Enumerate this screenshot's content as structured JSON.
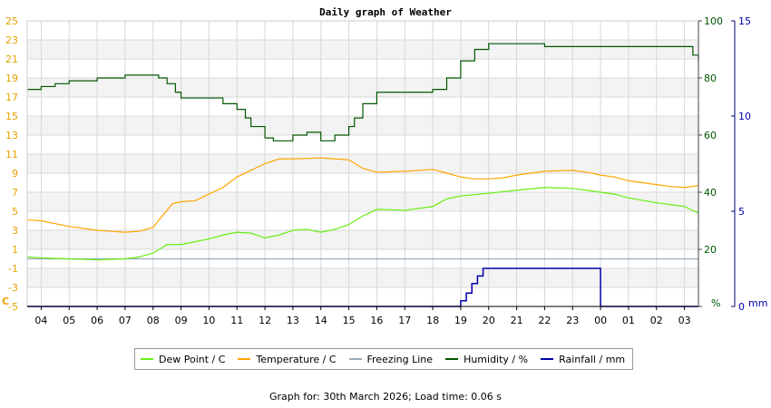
{
  "chart_data": {
    "type": "line",
    "title": "Daily graph of Weather",
    "x_ticks": [
      "04",
      "05",
      "06",
      "07",
      "08",
      "09",
      "10",
      "11",
      "12",
      "13",
      "14",
      "15",
      "16",
      "17",
      "18",
      "19",
      "20",
      "21",
      "22",
      "23",
      "00",
      "01",
      "02",
      "03"
    ],
    "left_axis": {
      "unit": "C",
      "ticks": [
        25,
        23,
        21,
        19,
        17,
        15,
        13,
        11,
        9,
        7,
        5,
        3,
        1,
        -1,
        -3,
        -5
      ],
      "range": [
        -5,
        25
      ]
    },
    "right_axis_humidity": {
      "unit": "%",
      "ticks": [
        100,
        80,
        60,
        40,
        20,
        0
      ],
      "range": [
        0,
        100
      ]
    },
    "right_axis_rain": {
      "unit": "mm",
      "ticks": [
        15,
        10,
        5,
        0
      ],
      "range": [
        0,
        15
      ]
    },
    "grid": true,
    "legend_position": "bottom",
    "series": [
      {
        "name": "Dew Point / C",
        "color": "#66ee11",
        "axis": "temp",
        "x": [
          3.5,
          4,
          5,
          6,
          7,
          7.5,
          8,
          8.5,
          9,
          9.5,
          10,
          10.5,
          11,
          11.5,
          12,
          12.5,
          13,
          13.5,
          14,
          14.5,
          15,
          15.5,
          16,
          17,
          18,
          18.5,
          19,
          20,
          21,
          22,
          23,
          23.5,
          24,
          24.5,
          25,
          26,
          27,
          27.5
        ],
        "y": [
          0.2,
          0.1,
          0,
          -0.1,
          0,
          0.2,
          0.6,
          1.5,
          1.5,
          1.8,
          2.1,
          2.5,
          2.8,
          2.7,
          2.2,
          2.5,
          3.0,
          3.1,
          2.8,
          3.1,
          3.6,
          4.5,
          5.2,
          5.1,
          5.5,
          6.3,
          6.6,
          6.9,
          7.2,
          7.5,
          7.4,
          7.2,
          7.0,
          6.8,
          6.4,
          5.9,
          5.5,
          4.8
        ]
      },
      {
        "name": "Temperature / C",
        "color": "#ffa500",
        "axis": "temp",
        "x": [
          3.5,
          4,
          5,
          6,
          7,
          7.5,
          8,
          8.3,
          8.7,
          9,
          9.5,
          10,
          10.5,
          11,
          11.5,
          12,
          12.5,
          13,
          14,
          14.5,
          15,
          15.5,
          16,
          17,
          18,
          18.5,
          19,
          19.5,
          20,
          20.5,
          21,
          22,
          23,
          23.5,
          24,
          24.5,
          25,
          26,
          26.5,
          27,
          27.5
        ],
        "y": [
          4.1,
          4.0,
          3.4,
          3.0,
          2.8,
          2.9,
          3.3,
          4.4,
          5.8,
          6.0,
          6.1,
          6.8,
          7.5,
          8.6,
          9.3,
          10.0,
          10.5,
          10.5,
          10.6,
          10.5,
          10.4,
          9.5,
          9.1,
          9.2,
          9.4,
          9.0,
          8.6,
          8.4,
          8.4,
          8.5,
          8.8,
          9.2,
          9.3,
          9.1,
          8.8,
          8.6,
          8.2,
          7.8,
          7.6,
          7.5,
          7.7
        ]
      },
      {
        "name": "Freezing Line",
        "color": "#99aabb",
        "axis": "temp",
        "x": [
          3.5,
          27.5
        ],
        "y": [
          0,
          0
        ]
      },
      {
        "name": "Humidity / %",
        "color": "#005500",
        "axis": "humidity",
        "x": [
          3.5,
          4,
          4.5,
          5,
          5.5,
          6,
          6.5,
          7,
          7.5,
          8,
          8.2,
          8.5,
          8.8,
          9,
          9.5,
          10,
          10.5,
          11,
          11.3,
          11.5,
          12,
          12.3,
          12.5,
          13,
          13.5,
          14,
          14.5,
          15,
          15.2,
          15.5,
          16,
          16.5,
          17,
          17.5,
          18,
          18.5,
          19,
          19.5,
          20,
          21,
          22,
          23,
          24,
          24.5,
          25,
          25.5,
          26,
          27,
          27.3,
          27.5
        ],
        "y": [
          76,
          77,
          78,
          79,
          79,
          80,
          80,
          81,
          81,
          81,
          80,
          78,
          75,
          73,
          73,
          73,
          71,
          69,
          66,
          63,
          59,
          58,
          58,
          60,
          61,
          58,
          60,
          63,
          66,
          71,
          75,
          75,
          75,
          75,
          76,
          80,
          86,
          90,
          92,
          92,
          91,
          91,
          91,
          91,
          91,
          91,
          91,
          91,
          88,
          86
        ]
      },
      {
        "name": "Rainfall / mm",
        "color": "#0000aa",
        "axis": "rain",
        "x": [
          3.5,
          18.8,
          19,
          19.2,
          19.4,
          19.6,
          19.8,
          20.0,
          24,
          24.0,
          27.5
        ],
        "y": [
          0,
          0,
          0.3,
          0.7,
          1.2,
          1.6,
          2.0,
          2.0,
          2.0,
          0,
          0
        ]
      }
    ]
  },
  "footer": {
    "text": "Graph for: 30th March 2026; Load time: 0.06 s"
  }
}
